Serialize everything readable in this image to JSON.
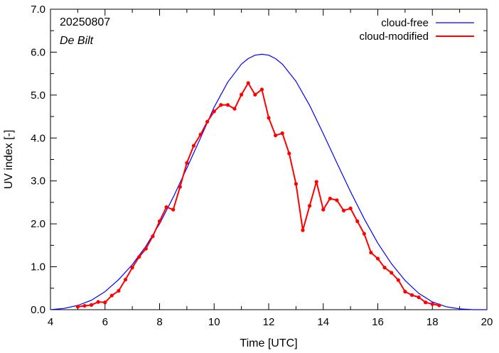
{
  "chart_data": {
    "type": "line",
    "title": "",
    "xlabel": "Time  [UTC]",
    "ylabel": "UV index  [-]",
    "xlim": [
      4,
      20
    ],
    "ylim": [
      0,
      7
    ],
    "x_ticks": [
      "4",
      "6",
      "8",
      "10",
      "12",
      "14",
      "16",
      "18",
      "20"
    ],
    "y_ticks": [
      "0.0",
      "1.0",
      "2.0",
      "3.0",
      "4.0",
      "5.0",
      "6.0",
      "7.0"
    ],
    "annotations": {
      "date": "20250807",
      "location": "De Bilt"
    },
    "legend_position": "top-right",
    "grid": false,
    "series": [
      {
        "name": "cloud-free",
        "color": "#0000ff",
        "style": "line",
        "x": [
          4.0,
          4.5,
          5.0,
          5.5,
          6.0,
          6.5,
          7.0,
          7.5,
          8.0,
          8.5,
          9.0,
          9.5,
          10.0,
          10.5,
          11.0,
          11.25,
          11.5,
          11.75,
          12.0,
          12.25,
          12.5,
          13.0,
          13.5,
          14.0,
          14.5,
          15.0,
          15.5,
          16.0,
          16.5,
          17.0,
          17.5,
          18.0,
          18.5,
          19.0,
          19.5,
          20.0
        ],
        "values": [
          0.0,
          0.03,
          0.1,
          0.22,
          0.42,
          0.7,
          1.05,
          1.48,
          2.0,
          2.62,
          3.3,
          4.0,
          4.72,
          5.3,
          5.72,
          5.85,
          5.93,
          5.95,
          5.93,
          5.85,
          5.72,
          5.32,
          4.76,
          4.1,
          3.42,
          2.75,
          2.12,
          1.55,
          1.07,
          0.68,
          0.38,
          0.18,
          0.07,
          0.02,
          0.0,
          0.0
        ]
      },
      {
        "name": "cloud-modified",
        "color": "#ff0000",
        "style": "line-points",
        "x": [
          5.0,
          5.25,
          5.5,
          5.75,
          6.0,
          6.25,
          6.5,
          6.75,
          7.0,
          7.25,
          7.5,
          7.75,
          8.0,
          8.25,
          8.5,
          8.75,
          9.0,
          9.25,
          9.5,
          9.75,
          10.0,
          10.25,
          10.5,
          10.75,
          11.0,
          11.25,
          11.5,
          11.75,
          12.0,
          12.25,
          12.5,
          12.75,
          13.0,
          13.25,
          13.5,
          13.75,
          14.0,
          14.25,
          14.5,
          14.75,
          15.0,
          15.25,
          15.5,
          15.75,
          16.0,
          16.25,
          16.5,
          16.75,
          17.0,
          17.25,
          17.5,
          17.75,
          18.0,
          18.25
        ],
        "values": [
          0.07,
          0.09,
          0.11,
          0.18,
          0.17,
          0.33,
          0.44,
          0.7,
          0.98,
          1.23,
          1.42,
          1.71,
          2.06,
          2.39,
          2.33,
          2.86,
          3.42,
          3.82,
          4.08,
          4.38,
          4.62,
          4.77,
          4.77,
          4.68,
          5.01,
          5.28,
          5.01,
          5.13,
          4.47,
          4.06,
          4.11,
          3.64,
          2.93,
          1.85,
          2.42,
          2.98,
          2.33,
          2.59,
          2.55,
          2.31,
          2.36,
          2.06,
          1.77,
          1.33,
          1.19,
          0.98,
          0.86,
          0.69,
          0.42,
          0.34,
          0.29,
          0.17,
          0.13,
          0.1
        ]
      }
    ]
  }
}
